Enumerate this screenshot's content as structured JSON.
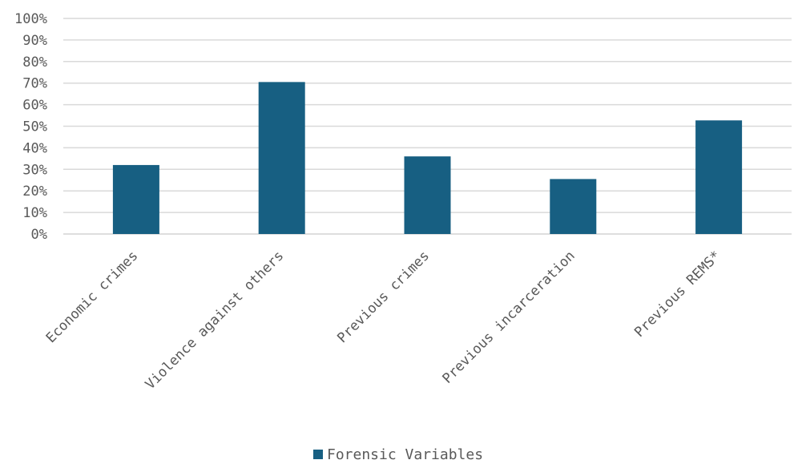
{
  "chart_data": {
    "type": "bar",
    "categories": [
      "Economic crimes",
      "Violence against others",
      "Previous crimes",
      "Previous incarceration",
      "Previous REMS*"
    ],
    "series": [
      {
        "name": "Forensic Variables",
        "values": [
          32,
          70.5,
          36,
          25.5,
          52.7
        ],
        "color": "#175f82"
      }
    ],
    "ylim": [
      0,
      100
    ],
    "yticks": [
      "0%",
      "10%",
      "20%",
      "30%",
      "40%",
      "50%",
      "60%",
      "70%",
      "80%",
      "90%",
      "100%"
    ],
    "grid": true,
    "legend_position": "bottom",
    "colors": {
      "bar": "#175f82",
      "grid": "#d9d9d9",
      "text": "#595959"
    }
  }
}
